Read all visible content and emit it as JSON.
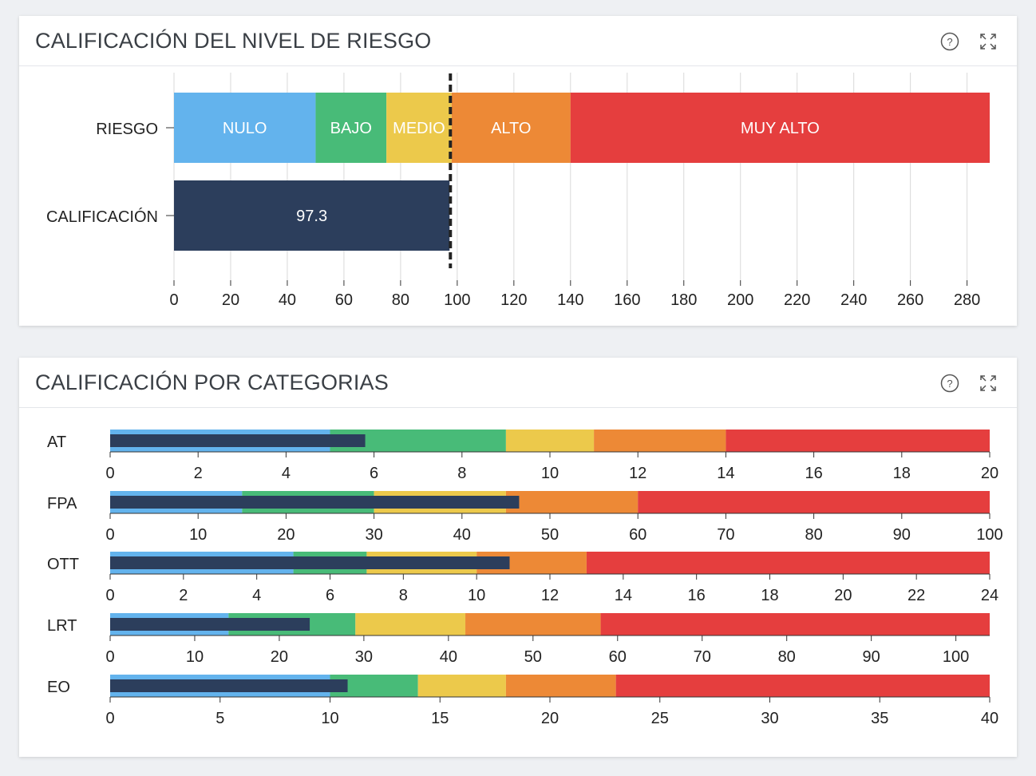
{
  "panels": {
    "risk": {
      "title": "CALIFICACIÓN DEL NIVEL DE RIESGO"
    },
    "categories": {
      "title": "CALIFICACIÓN POR CATEGORIAS"
    }
  },
  "icons": {
    "help": "help-circle-icon",
    "expand": "expand-icon"
  },
  "colors": {
    "nulo": "#63b3ed",
    "bajo": "#48bb78",
    "medio": "#ecc94b",
    "alto": "#ed8936",
    "muy_alto": "#e53e3e",
    "score": "#2c3e5c"
  },
  "chart_data": [
    {
      "type": "bar",
      "orientation": "horizontal",
      "title": "CALIFICACIÓN DEL NIVEL DE RIESGO",
      "categories": [
        "RIESGO",
        "CALIFICACIÓN"
      ],
      "xlim": [
        0,
        288
      ],
      "x_ticks": [
        0,
        20,
        40,
        60,
        80,
        100,
        120,
        140,
        160,
        180,
        200,
        220,
        240,
        260,
        280
      ],
      "grid": true,
      "risk_bands": [
        {
          "label": "NULO",
          "from": 0,
          "to": 50,
          "color": "#63b3ed"
        },
        {
          "label": "BAJO",
          "from": 50,
          "to": 75,
          "color": "#48bb78"
        },
        {
          "label": "MEDIO",
          "from": 75,
          "to": 98,
          "color": "#ecc94b"
        },
        {
          "label": "ALTO",
          "from": 98,
          "to": 140,
          "color": "#ed8936"
        },
        {
          "label": "MUY ALTO",
          "from": 140,
          "to": 288,
          "color": "#e53e3e"
        }
      ],
      "score": {
        "value": 97.3,
        "label": "97.3"
      },
      "threshold": 97.3
    },
    {
      "type": "bar",
      "orientation": "horizontal",
      "title": "CALIFICACIÓN POR CATEGORIAS",
      "rows": [
        {
          "category": "AT",
          "max": 20,
          "ticks": [
            0,
            2,
            4,
            6,
            8,
            10,
            12,
            14,
            16,
            18,
            20
          ],
          "bands": [
            5,
            9,
            11,
            14,
            20
          ],
          "value": 5.8
        },
        {
          "category": "FPA",
          "max": 100,
          "ticks": [
            0,
            10,
            20,
            30,
            40,
            50,
            60,
            70,
            80,
            90,
            100
          ],
          "bands": [
            15,
            30,
            45,
            60,
            100
          ],
          "value": 46.5
        },
        {
          "category": "OTT",
          "max": 24,
          "ticks": [
            0,
            2,
            4,
            6,
            8,
            10,
            12,
            14,
            16,
            18,
            20,
            22,
            24
          ],
          "bands": [
            5,
            7,
            10,
            13,
            24
          ],
          "value": 10.9
        },
        {
          "category": "LRT",
          "max": 104,
          "ticks": [
            0,
            10,
            20,
            30,
            40,
            50,
            60,
            70,
            80,
            90,
            100
          ],
          "bands": [
            14,
            29,
            42,
            58,
            104
          ],
          "value": 23.6
        },
        {
          "category": "EO",
          "max": 40,
          "ticks": [
            0,
            5,
            10,
            15,
            20,
            25,
            30,
            35,
            40
          ],
          "bands": [
            10,
            14,
            18,
            23,
            40
          ],
          "value": 10.8
        }
      ],
      "band_colors": [
        "#63b3ed",
        "#48bb78",
        "#ecc94b",
        "#ed8936",
        "#e53e3e"
      ]
    }
  ]
}
